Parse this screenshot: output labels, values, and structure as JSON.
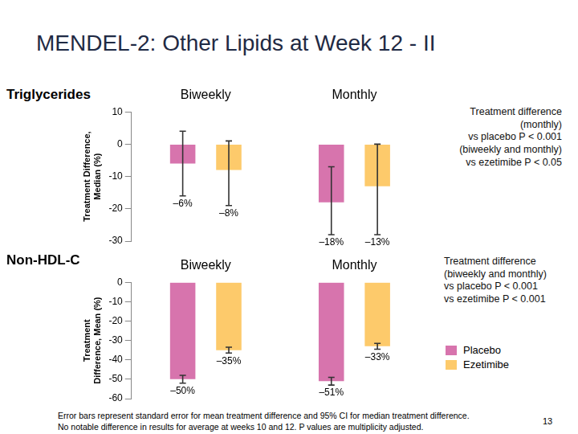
{
  "title": "MENDEL-2: Other Lipids at Week 12 - II",
  "footnote": "Error bars represent standard error for mean treatment difference and 95% CI for median treatment difference.\nNo notable difference in results for average at weeks 10 and 12. P values are multiplicity adjusted.",
  "page_number": 13,
  "chart_data": [
    {
      "type": "bar",
      "title": "Triglycerides",
      "y_label": "Treatment Difference, Median (%)",
      "annotation": "Treatment difference\n(monthly)\nvs placebo P < 0.001\n(biweekly and monthly)\nvs ezetimibe P < 0.05",
      "categories": [
        "Biweekly",
        "Monthly"
      ],
      "series": [
        {
          "name": "Placebo",
          "color": "#d774ad",
          "values": [
            -6,
            -18
          ],
          "value_labels": [
            "–6%",
            "–18%"
          ],
          "error_low": [
            -16,
            -28
          ],
          "error_high": [
            4,
            -7
          ]
        },
        {
          "name": "Ezetimibe",
          "color": "#fdca6b",
          "values": [
            -8,
            -13
          ],
          "value_labels": [
            "–8%",
            "–13%"
          ],
          "error_low": [
            -19,
            -28
          ],
          "error_high": [
            1,
            0
          ]
        }
      ],
      "ylim": [
        -30,
        10
      ],
      "yticks": [
        -30,
        -20,
        -10,
        0,
        10
      ],
      "grid": false,
      "data_labels": true
    },
    {
      "type": "bar",
      "title": "Non-HDL-C",
      "y_label": "Treatment Difference, Mean (%)",
      "annotation": "Treatment difference\n(biweekly and monthly)\nvs placebo P < 0.001\nvs ezetimibe P < 0.001",
      "categories": [
        "Biweekly",
        "Monthly"
      ],
      "series": [
        {
          "name": "Placebo",
          "color": "#d774ad",
          "values": [
            -50,
            -51
          ],
          "value_labels": [
            "–50%",
            "–51%"
          ],
          "error_low": [
            -52,
            -53
          ],
          "error_high": [
            -48,
            -49
          ]
        },
        {
          "name": "Ezetimibe",
          "color": "#fdca6b",
          "values": [
            -35,
            -33
          ],
          "value_labels": [
            "–35%",
            "–33%"
          ],
          "error_low": [
            -36.5,
            -34.5
          ],
          "error_high": [
            -33.5,
            -31.5
          ]
        }
      ],
      "ylim": [
        -60,
        0
      ],
      "yticks": [
        -60,
        -50,
        -40,
        -30,
        -20,
        -10,
        0
      ],
      "grid": false,
      "data_labels": true,
      "legend": "right"
    }
  ]
}
